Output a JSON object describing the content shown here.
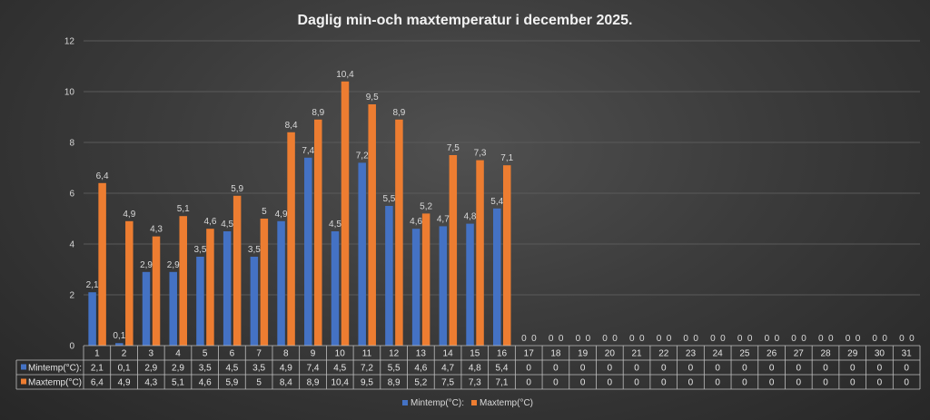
{
  "chart_data": {
    "type": "bar",
    "title": "Daglig min-och maxtemperatur i december 2025.",
    "categories": [
      "1",
      "2",
      "3",
      "4",
      "5",
      "6",
      "7",
      "8",
      "9",
      "10",
      "11",
      "12",
      "13",
      "14",
      "15",
      "16",
      "17",
      "18",
      "19",
      "20",
      "21",
      "22",
      "23",
      "24",
      "25",
      "26",
      "27",
      "28",
      "29",
      "30",
      "31"
    ],
    "series": [
      {
        "name": "Mintemp(°C):",
        "color": "#4472c4",
        "values": [
          2.1,
          0.1,
          2.9,
          2.9,
          3.5,
          4.5,
          3.5,
          4.9,
          7.4,
          4.5,
          7.2,
          5.5,
          4.6,
          4.7,
          4.8,
          5.4,
          0,
          0,
          0,
          0,
          0,
          0,
          0,
          0,
          0,
          0,
          0,
          0,
          0,
          0,
          0
        ],
        "labels": [
          "2,1",
          "0,1",
          "2,9",
          "2,9",
          "3,5",
          "4,5",
          "3,5",
          "4,9",
          "7,4",
          "4,5",
          "7,2",
          "5,5",
          "4,6",
          "4,7",
          "4,8",
          "5,4",
          "0",
          "0",
          "0",
          "0",
          "0",
          "0",
          "0",
          "0",
          "0",
          "0",
          "0",
          "0",
          "0",
          "0",
          "0"
        ]
      },
      {
        "name": "Maxtemp(°C)",
        "color": "#ed7d31",
        "values": [
          6.4,
          4.9,
          4.3,
          5.1,
          4.6,
          5.9,
          5,
          8.4,
          8.9,
          10.4,
          9.5,
          8.9,
          5.2,
          7.5,
          7.3,
          7.1,
          0,
          0,
          0,
          0,
          0,
          0,
          0,
          0,
          0,
          0,
          0,
          0,
          0,
          0,
          0
        ],
        "labels": [
          "6,4",
          "4,9",
          "4,3",
          "5,1",
          "4,6",
          "5,9",
          "5",
          "8,4",
          "8,9",
          "10,4",
          "9,5",
          "8,9",
          "5,2",
          "7,5",
          "7,3",
          "7,1",
          "0",
          "0",
          "0",
          "0",
          "0",
          "0",
          "0",
          "0",
          "0",
          "0",
          "0",
          "0",
          "0",
          "0",
          "0"
        ]
      }
    ],
    "yticks": [
      "0",
      "2",
      "4",
      "6",
      "8",
      "10",
      "12"
    ],
    "ylim": [
      0,
      12
    ],
    "grid": true,
    "legend_position": "bottom",
    "data_table": true
  }
}
